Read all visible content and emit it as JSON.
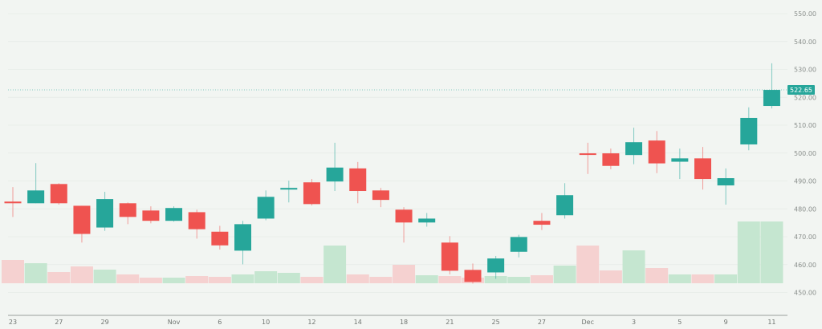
{
  "chart_data": {
    "type": "candlestick",
    "title": "",
    "xlabel": "",
    "ylabel": "",
    "ylim": [
      450,
      550
    ],
    "y_ticks": [
      "550.00",
      "540.00",
      "530.00",
      "520.00",
      "510.00",
      "500.00",
      "490.00",
      "480.00",
      "470.00",
      "460.00",
      "450.00"
    ],
    "x_tick_labels": [
      {
        "label": "23",
        "index": 0
      },
      {
        "label": "27",
        "index": 2
      },
      {
        "label": "29",
        "index": 4
      },
      {
        "label": "Nov",
        "index": 7
      },
      {
        "label": "6",
        "index": 9
      },
      {
        "label": "10",
        "index": 11
      },
      {
        "label": "12",
        "index": 13
      },
      {
        "label": "14",
        "index": 15
      },
      {
        "label": "18",
        "index": 17
      },
      {
        "label": "21",
        "index": 19
      },
      {
        "label": "25",
        "index": 21
      },
      {
        "label": "27",
        "index": 23
      },
      {
        "label": "Dec",
        "index": 25
      },
      {
        "label": "3",
        "index": 27
      },
      {
        "label": "5",
        "index": 29
      },
      {
        "label": "9",
        "index": 31
      },
      {
        "label": "11",
        "index": 33
      }
    ],
    "grid": true,
    "last_price": "522.65",
    "colors": {
      "up": "#26a69a",
      "down": "#ef5350",
      "up_volume": "#c5e6d0",
      "down_volume": "#f5d1d0",
      "background": "#f2f5f2"
    },
    "candles": [
      {
        "o": 482.6,
        "h": 487.8,
        "l": 477.1,
        "c": 482.0
      },
      {
        "o": 482.0,
        "h": 496.4,
        "l": 482.0,
        "c": 486.6
      },
      {
        "o": 488.9,
        "h": 489.2,
        "l": 481.5,
        "c": 482.0
      },
      {
        "o": 481.1,
        "h": 481.1,
        "l": 467.9,
        "c": 471.0
      },
      {
        "o": 473.3,
        "h": 486.1,
        "l": 472.1,
        "c": 483.5
      },
      {
        "o": 482.0,
        "h": 482.3,
        "l": 474.5,
        "c": 477.1
      },
      {
        "o": 479.4,
        "h": 480.9,
        "l": 474.8,
        "c": 475.7
      },
      {
        "o": 475.7,
        "h": 480.9,
        "l": 475.4,
        "c": 480.3
      },
      {
        "o": 478.8,
        "h": 479.7,
        "l": 469.3,
        "c": 472.7
      },
      {
        "o": 471.8,
        "h": 473.9,
        "l": 465.4,
        "c": 466.9
      },
      {
        "o": 465.0,
        "h": 475.7,
        "l": 460.1,
        "c": 474.5
      },
      {
        "o": 476.5,
        "h": 486.6,
        "l": 475.9,
        "c": 484.3
      },
      {
        "o": 486.9,
        "h": 490.1,
        "l": 482.3,
        "c": 487.5
      },
      {
        "o": 489.5,
        "h": 490.7,
        "l": 481.2,
        "c": 481.7
      },
      {
        "o": 489.8,
        "h": 503.7,
        "l": 486.4,
        "c": 494.8
      },
      {
        "o": 494.5,
        "h": 496.8,
        "l": 482.0,
        "c": 486.4
      },
      {
        "o": 486.6,
        "h": 487.5,
        "l": 480.6,
        "c": 483.2
      },
      {
        "o": 479.7,
        "h": 480.6,
        "l": 467.9,
        "c": 475.1
      },
      {
        "o": 475.1,
        "h": 478.5,
        "l": 473.6,
        "c": 476.5
      },
      {
        "o": 467.9,
        "h": 470.2,
        "l": 456.5,
        "c": 457.8
      },
      {
        "o": 458.1,
        "h": 460.4,
        "l": 453.2,
        "c": 453.8
      },
      {
        "o": 457.2,
        "h": 463.1,
        "l": 454.9,
        "c": 462.2
      },
      {
        "o": 464.6,
        "h": 470.7,
        "l": 462.6,
        "c": 469.9
      },
      {
        "o": 475.7,
        "h": 478.5,
        "l": 472.4,
        "c": 474.3
      },
      {
        "o": 477.7,
        "h": 489.2,
        "l": 476.5,
        "c": 484.9
      },
      {
        "o": 499.9,
        "h": 503.7,
        "l": 492.5,
        "c": 499.6
      },
      {
        "o": 499.9,
        "h": 501.6,
        "l": 494.2,
        "c": 495.4
      },
      {
        "o": 499.3,
        "h": 509.1,
        "l": 496.0,
        "c": 503.9
      },
      {
        "o": 504.5,
        "h": 507.9,
        "l": 492.8,
        "c": 496.3
      },
      {
        "o": 496.9,
        "h": 501.6,
        "l": 490.7,
        "c": 498.1
      },
      {
        "o": 498.1,
        "h": 502.2,
        "l": 486.9,
        "c": 490.7
      },
      {
        "o": 488.4,
        "h": 494.5,
        "l": 481.5,
        "c": 491.0
      },
      {
        "o": 503.1,
        "h": 516.4,
        "l": 501.0,
        "c": 512.6
      },
      {
        "o": 516.9,
        "h": 532.2,
        "l": 516.0,
        "c": 522.65
      }
    ],
    "volume_relative": [
      29,
      25,
      14,
      21,
      17,
      11,
      7,
      7,
      9,
      8,
      11,
      15,
      13,
      8,
      47,
      11,
      8,
      23,
      10,
      9,
      7,
      9,
      8,
      10,
      22,
      47,
      16,
      41,
      19,
      11,
      11,
      11,
      77,
      77
    ]
  }
}
